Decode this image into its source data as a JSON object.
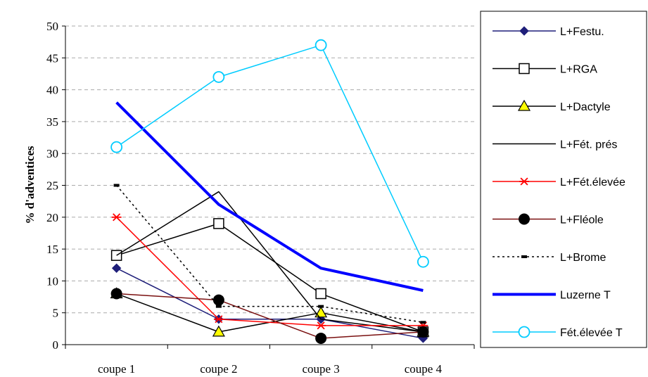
{
  "chart_data": {
    "type": "line",
    "title": "",
    "xlabel": "",
    "ylabel": "% d'adventices",
    "categories": [
      "coupe 1",
      "coupe 2",
      "coupe 3",
      "coupe 4"
    ],
    "ylim": [
      0,
      50
    ],
    "yticks": [
      0,
      5,
      10,
      15,
      20,
      25,
      30,
      35,
      40,
      45,
      50
    ],
    "grid": "horizontal dashed",
    "legend_position": "right",
    "series": [
      {
        "name": "L+Festu.",
        "values": [
          12,
          4,
          4,
          1
        ],
        "color": "#1f1f7a",
        "marker": "diamond",
        "dash": "solid",
        "width": 1.5
      },
      {
        "name": "L+RGA",
        "values": [
          14,
          19,
          8,
          2
        ],
        "color": "#000000",
        "marker": "square-open",
        "dash": "solid",
        "width": 1.5
      },
      {
        "name": "L+Dactyle",
        "values": [
          8,
          2,
          5,
          2
        ],
        "color": "#000000",
        "marker": "triangle-yellow",
        "dash": "solid",
        "width": 1.5
      },
      {
        "name": "L+Fét. prés",
        "values": [
          14,
          24,
          4,
          2
        ],
        "color": "#000000",
        "marker": "none",
        "dash": "solid",
        "width": 1.5
      },
      {
        "name": "L+Fét.élevée",
        "values": [
          20,
          4,
          3,
          3
        ],
        "color": "#ff0000",
        "marker": "star",
        "dash": "solid",
        "width": 1.5
      },
      {
        "name": "L+Fléole",
        "values": [
          8,
          7,
          1,
          2
        ],
        "color": "#7a1010",
        "marker": "circle-filled",
        "dash": "solid",
        "width": 1.5
      },
      {
        "name": "L+Brome",
        "values": [
          25,
          6,
          6,
          3.5
        ],
        "color": "#000000",
        "marker": "dash",
        "dash": "dotted",
        "width": 1.5
      },
      {
        "name": "Luzerne T",
        "values": [
          38,
          22,
          12,
          8.5
        ],
        "color": "#0000ff",
        "marker": "none",
        "dash": "solid",
        "width": 4
      },
      {
        "name": "Fét.élevée T",
        "values": [
          31,
          42,
          47,
          13
        ],
        "color": "#00ccff",
        "marker": "circle-open",
        "dash": "solid",
        "width": 1.5
      }
    ]
  }
}
